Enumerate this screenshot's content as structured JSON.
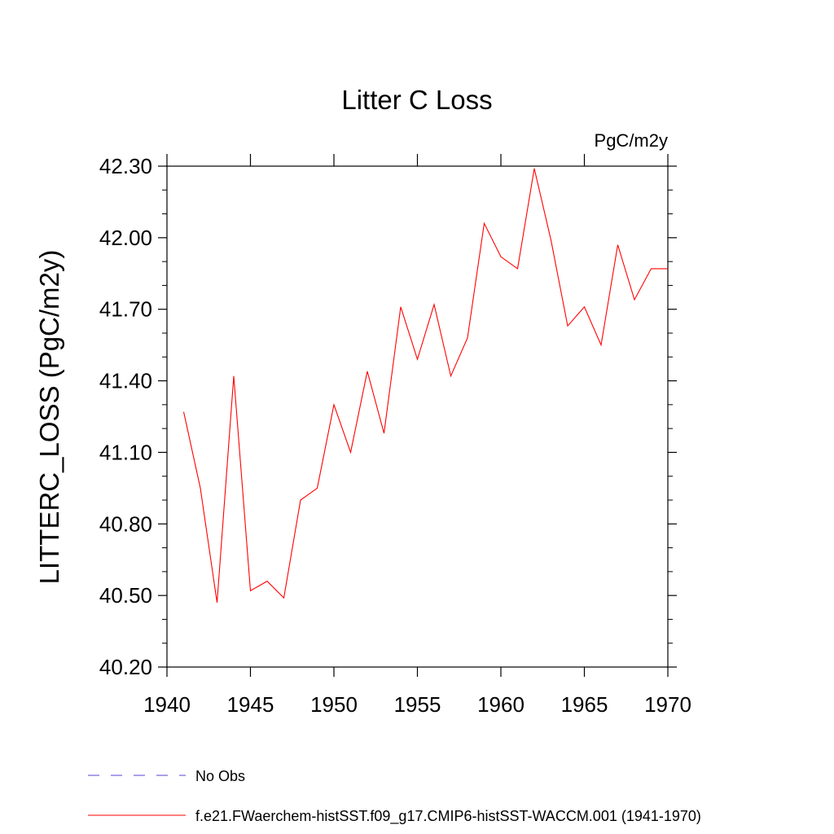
{
  "chart_data": {
    "type": "line",
    "title": "Litter C Loss",
    "units_label": "PgC/m2y",
    "ylabel": "LITTERC_LOSS  (PgC/m2y)",
    "xlabel": "",
    "xlim": [
      1940,
      1970
    ],
    "ylim": [
      40.2,
      42.3
    ],
    "x_ticks": [
      1940,
      1945,
      1950,
      1955,
      1960,
      1965,
      1970
    ],
    "x_tick_labels": [
      "1940",
      "1945",
      "1950",
      "1955",
      "1960",
      "1965",
      "1970"
    ],
    "y_ticks": [
      40.2,
      40.5,
      40.8,
      41.1,
      41.4,
      41.7,
      42.0,
      42.3
    ],
    "y_tick_labels": [
      "40.20",
      "40.50",
      "40.80",
      "41.10",
      "41.40",
      "41.70",
      "42.00",
      "42.30"
    ],
    "grid": false,
    "legend_position": "bottom",
    "series": [
      {
        "name": "f.e21.FWaerchem-histSST.f09_g17.CMIP6-histSST-WACCM.001 (1941-1970)",
        "color": "#ff0000",
        "style": "solid",
        "x": [
          1941,
          1942,
          1943,
          1944,
          1945,
          1946,
          1947,
          1948,
          1949,
          1950,
          1951,
          1952,
          1953,
          1954,
          1955,
          1956,
          1957,
          1958,
          1959,
          1960,
          1961,
          1962,
          1963,
          1964,
          1965,
          1966,
          1967,
          1968,
          1969,
          1970
        ],
        "y": [
          41.27,
          40.95,
          40.47,
          41.42,
          40.52,
          40.56,
          40.49,
          40.9,
          40.95,
          41.3,
          41.1,
          41.44,
          41.18,
          41.71,
          41.49,
          41.72,
          41.42,
          41.58,
          42.06,
          41.92,
          41.87,
          42.29,
          41.99,
          41.63,
          41.71,
          41.55,
          41.97,
          41.74,
          41.87,
          41.87
        ]
      }
    ],
    "legend": [
      {
        "label": "No Obs",
        "color": "#5a3fd1",
        "style": "dashed"
      },
      {
        "label": "f.e21.FWaerchem-histSST.f09_g17.CMIP6-histSST-WACCM.001 (1941-1970)",
        "color": "#ff0000",
        "style": "solid"
      }
    ]
  }
}
